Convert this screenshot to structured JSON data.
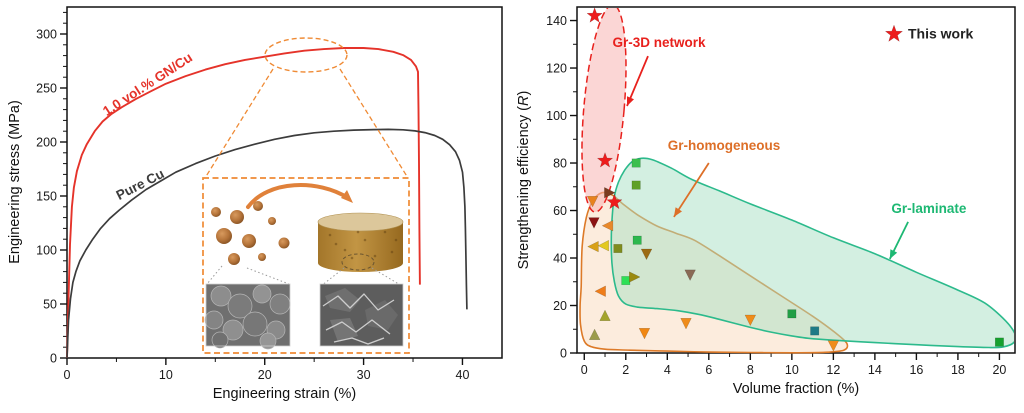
{
  "chart_data": [
    {
      "type": "line",
      "title": "",
      "xlabel": "Engineering strain (%)",
      "ylabel": "Engineering stress (MPa)",
      "xlim": [
        0,
        44
      ],
      "ylim": [
        0,
        325
      ],
      "xticks": [
        0,
        10,
        20,
        30,
        40
      ],
      "x_minor_step": 5,
      "yticks": [
        0,
        50,
        100,
        150,
        200,
        250,
        300
      ],
      "y_minor_step": 10,
      "annotation_color": "#ef8a34",
      "series": [
        {
          "name": "1.0 vol.% GN/Cu",
          "color": "#e5332a",
          "label": {
            "text": "1.0 vol.% GN/Cu",
            "x": 8.4,
            "y": 250,
            "rotate": -33
          },
          "points": [
            [
              0,
              0
            ],
            [
              0.15,
              55
            ],
            [
              0.3,
              105
            ],
            [
              0.5,
              140
            ],
            [
              0.7,
              158
            ],
            [
              1,
              173
            ],
            [
              1.5,
              188
            ],
            [
              2,
              198
            ],
            [
              2.8,
              210
            ],
            [
              3.6,
              219
            ],
            [
              4.5,
              226
            ],
            [
              5.5,
              232
            ],
            [
              7,
              240
            ],
            [
              8.5,
              247
            ],
            [
              10,
              254
            ],
            [
              12,
              261
            ],
            [
              14,
              267
            ],
            [
              16,
              272
            ],
            [
              18,
              276
            ],
            [
              20,
              279
            ],
            [
              22,
              282
            ],
            [
              24,
              284.5
            ],
            [
              26,
              286
            ],
            [
              28,
              287
            ],
            [
              30,
              287
            ],
            [
              31.5,
              286
            ],
            [
              33,
              283.5
            ],
            [
              34,
              280.5
            ],
            [
              34.8,
              276
            ],
            [
              35.3,
              270
            ],
            [
              35.5,
              265
            ],
            [
              35.55,
              230
            ],
            [
              35.6,
              180
            ],
            [
              35.65,
              120
            ],
            [
              35.7,
              68
            ]
          ]
        },
        {
          "name": "Pure Cu",
          "color": "#3c3c3c",
          "label": {
            "text": "Pure Cu",
            "x": 7.6,
            "y": 157,
            "rotate": -27
          },
          "points": [
            [
              0,
              0
            ],
            [
              0.15,
              35
            ],
            [
              0.35,
              55
            ],
            [
              0.6,
              70
            ],
            [
              0.9,
              80
            ],
            [
              1.3,
              90
            ],
            [
              1.9,
              100
            ],
            [
              2.6,
              110
            ],
            [
              3.4,
              120
            ],
            [
              4.3,
              129
            ],
            [
              5.3,
              137
            ],
            [
              6.5,
              146
            ],
            [
              8,
              156
            ],
            [
              9.5,
              164
            ],
            [
              11,
              172
            ],
            [
              13,
              180
            ],
            [
              15,
              187
            ],
            [
              17,
              193
            ],
            [
              19,
              198
            ],
            [
              21,
              202.5
            ],
            [
              23,
              206
            ],
            [
              25,
              208.5
            ],
            [
              27,
              210
            ],
            [
              29,
              211
            ],
            [
              31,
              211.5
            ],
            [
              32.5,
              211.7
            ],
            [
              34,
              211.3
            ],
            [
              35.2,
              210.3
            ],
            [
              36.2,
              208.7
            ],
            [
              37.2,
              206
            ],
            [
              38,
              202.5
            ],
            [
              38.7,
              197.5
            ],
            [
              39.3,
              191
            ],
            [
              39.7,
              183
            ],
            [
              40,
              172
            ],
            [
              40.15,
              158
            ],
            [
              40.25,
              140
            ],
            [
              40.3,
              120
            ],
            [
              40.35,
              95
            ],
            [
              40.4,
              68
            ],
            [
              40.45,
              45
            ]
          ]
        }
      ],
      "inset_note": "process inset: copper powder particles consolidated into cylinder, with two SEM micrographs"
    },
    {
      "type": "scatter",
      "title": "",
      "xlabel": "Volume fraction (%)",
      "ylabel_parts": {
        "pre": "Strengthening efficiency (",
        "italic": "R",
        "post": ")"
      },
      "xlim": [
        -0.35,
        20.75
      ],
      "ylim": [
        0,
        145.7
      ],
      "xticks": [
        0,
        2,
        4,
        6,
        8,
        10,
        12,
        14,
        16,
        18,
        20
      ],
      "x_minor_step": 1,
      "yticks": [
        0,
        20,
        40,
        60,
        80,
        100,
        120,
        140
      ],
      "y_minor_step": 10,
      "legend": {
        "label": "This work",
        "marker": "star",
        "color": "#ed1c1c",
        "x": 14.92,
        "y": 134.3
      },
      "regions": [
        {
          "name": "Gr-homogeneous",
          "kind": "blob",
          "stroke": "#dd7a28",
          "fill": "rgba(246,205,165,0.38)",
          "label": {
            "text": "Gr-homogeneous",
            "x": 6.73,
            "y": 87.2,
            "color": "#dd6f28"
          },
          "arrow": {
            "from": [
              6.0,
              80
            ],
            "to": [
              4.32,
              57.3
            ]
          },
          "outline": [
            [
              -0.15,
              28
            ],
            [
              -0.1,
              45
            ],
            [
              0.1,
              57
            ],
            [
              0.4,
              64
            ],
            [
              0.85,
              67.5
            ],
            [
              1.35,
              66.5
            ],
            [
              1.9,
              62.5
            ],
            [
              2.6,
              58
            ],
            [
              3.5,
              53.5
            ],
            [
              4.4,
              50.5
            ],
            [
              5.3,
              47.5
            ],
            [
              6.5,
              41
            ],
            [
              8,
              32.5
            ],
            [
              9.5,
              24
            ],
            [
              11,
              15.5
            ],
            [
              12.1,
              8.5
            ],
            [
              12.65,
              4
            ],
            [
              12.5,
              1.2
            ],
            [
              11.6,
              0.3
            ],
            [
              10,
              0.1
            ],
            [
              8,
              0.2
            ],
            [
              6,
              0.4
            ],
            [
              4,
              0.8
            ],
            [
              2.2,
              1.2
            ],
            [
              1,
              1.6
            ],
            [
              0.35,
              2.6
            ],
            [
              0,
              5
            ],
            [
              -0.18,
              12
            ],
            [
              -0.2,
              20
            ]
          ]
        },
        {
          "name": "Gr-laminate",
          "kind": "blob",
          "stroke": "#2cba8c",
          "fill": "rgba(167,224,196,0.5)",
          "label": {
            "text": "Gr-laminate",
            "x": 16.6,
            "y": 60.6,
            "color": "#1db873"
          },
          "arrow": {
            "from": [
              15.6,
              55.2
            ],
            "to": [
              14.72,
              39.6
            ]
          },
          "outline": [
            [
              2.3,
              80.5
            ],
            [
              2.75,
              82
            ],
            [
              3.3,
              81.3
            ],
            [
              4.2,
              77.8
            ],
            [
              5.2,
              73
            ],
            [
              6.5,
              68.3
            ],
            [
              8,
              62.8
            ],
            [
              10,
              56
            ],
            [
              12,
              48.5
            ],
            [
              14,
              41.8
            ],
            [
              16,
              34
            ],
            [
              18,
              26.5
            ],
            [
              19.3,
              21
            ],
            [
              20.3,
              13.5
            ],
            [
              20.75,
              8
            ],
            [
              20.7,
              4.5
            ],
            [
              20.2,
              2.6
            ],
            [
              19.5,
              2.3
            ],
            [
              18,
              2.7
            ],
            [
              16,
              3.5
            ],
            [
              14,
              4.4
            ],
            [
              12,
              5.4
            ],
            [
              10.8,
              6.2
            ],
            [
              10,
              7.2
            ],
            [
              9,
              8.8
            ],
            [
              8,
              10.8
            ],
            [
              6.5,
              14.2
            ],
            [
              5.5,
              16.3
            ],
            [
              4.5,
              17.8
            ],
            [
              3.5,
              18.7
            ],
            [
              2.6,
              19.3
            ],
            [
              2,
              20.6
            ],
            [
              1.65,
              24
            ],
            [
              1.45,
              30
            ],
            [
              1.33,
              38
            ],
            [
              1.3,
              48
            ],
            [
              1.35,
              58
            ],
            [
              1.45,
              66
            ],
            [
              1.65,
              72
            ],
            [
              1.95,
              77
            ]
          ]
        },
        {
          "name": "Gr-3D network",
          "kind": "ellipse",
          "stroke": "#e8211d",
          "fill": "rgba(247,180,178,0.55)",
          "dashed": true,
          "cx": 0.95,
          "cy": 103,
          "rx": 0.97,
          "ry": 43.8,
          "rotate": 5,
          "label": {
            "text": "Gr-3D network",
            "x": 3.6,
            "y": 130.5,
            "color": "#e8211d"
          },
          "arrow": {
            "from": [
              3.07,
              125
            ],
            "to": [
              2.06,
              104
            ]
          }
        }
      ],
      "points": [
        {
          "x": 0.5,
          "y": 142,
          "marker": "star",
          "color": "#ed1c1c"
        },
        {
          "x": 1.0,
          "y": 81,
          "marker": "star",
          "color": "#ed1c1c"
        },
        {
          "x": 1.45,
          "y": 63.5,
          "marker": "star",
          "color": "#ed1c1c"
        },
        {
          "x": 2.5,
          "y": 80,
          "marker": "square",
          "color": "#3bbf4e"
        },
        {
          "x": 2.5,
          "y": 70.7,
          "marker": "square",
          "color": "#5fa028"
        },
        {
          "x": 2.55,
          "y": 47.5,
          "marker": "square",
          "color": "#2db84e"
        },
        {
          "x": 1.62,
          "y": 44,
          "marker": "square",
          "color": "#7f8c1d"
        },
        {
          "x": 2.0,
          "y": 30.5,
          "marker": "square",
          "color": "#2ee056"
        },
        {
          "x": 10.0,
          "y": 16.5,
          "marker": "square",
          "color": "#219e45"
        },
        {
          "x": 11.1,
          "y": 9.3,
          "marker": "square",
          "color": "#1d7a86"
        },
        {
          "x": 20.0,
          "y": 4.6,
          "marker": "square",
          "color": "#16a02e"
        },
        {
          "x": 0.4,
          "y": 64,
          "marker": "tri-down",
          "color": "#e8821e"
        },
        {
          "x": 0.47,
          "y": 55,
          "marker": "tri-down",
          "color": "#8b1212"
        },
        {
          "x": 3.0,
          "y": 41.8,
          "marker": "tri-down",
          "color": "#9c6b14"
        },
        {
          "x": 5.1,
          "y": 33,
          "marker": "tri-down",
          "color": "#8a6a55"
        },
        {
          "x": 2.9,
          "y": 8.4,
          "marker": "tri-down",
          "color": "#f08713"
        },
        {
          "x": 4.9,
          "y": 12.6,
          "marker": "tri-down",
          "color": "#ef8c1a"
        },
        {
          "x": 8.0,
          "y": 14,
          "marker": "tri-down",
          "color": "#ef8c1a"
        },
        {
          "x": 12.0,
          "y": 3.2,
          "marker": "tri-down",
          "color": "#ef8c1a"
        },
        {
          "x": 1.15,
          "y": 53.6,
          "marker": "tri-left",
          "color": "#e8882a"
        },
        {
          "x": 0.45,
          "y": 44.8,
          "marker": "tri-left",
          "color": "#d8a018"
        },
        {
          "x": 0.95,
          "y": 45.2,
          "marker": "tri-left",
          "color": "#e3c81f"
        },
        {
          "x": 0.8,
          "y": 26,
          "marker": "tri-left",
          "color": "#ef7d1a"
        },
        {
          "x": 1.2,
          "y": 67.5,
          "marker": "tri-right",
          "color": "#7a3b1e"
        },
        {
          "x": 2.4,
          "y": 32,
          "marker": "tri-right",
          "color": "#9a8a10"
        },
        {
          "x": 1.0,
          "y": 15.6,
          "marker": "tri-up",
          "color": "#a3a32c"
        },
        {
          "x": 0.5,
          "y": 7.6,
          "marker": "tri-up",
          "color": "#9b9b4a"
        }
      ]
    }
  ]
}
